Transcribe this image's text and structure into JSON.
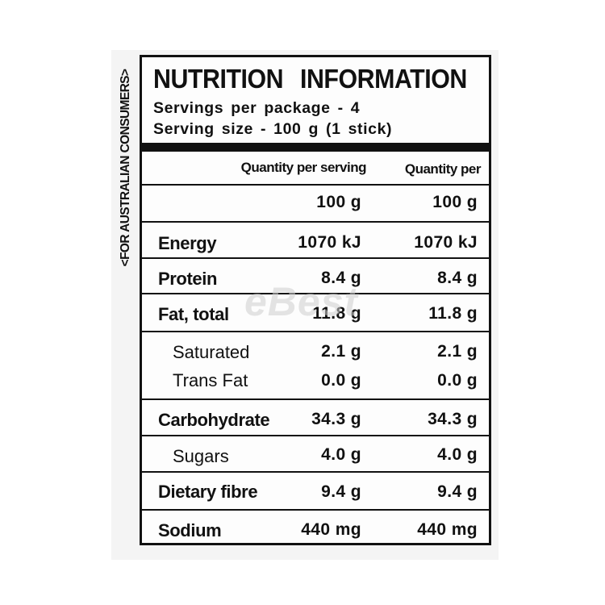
{
  "side_label": "<FOR AUSTRALIAN CONSUMERS>",
  "title": "NUTRITION  INFORMATION",
  "servings_per_package": "Servings per package - 4",
  "serving_size": "Serving size - 100 g (1 stick)",
  "columns": {
    "per_serving": "Quantity per serving",
    "per_100g": "Quantity per"
  },
  "base_row": {
    "per_serving": "100 g",
    "per_100g": "100 g"
  },
  "nutrients": {
    "energy": {
      "label": "Energy",
      "per_serving": "1070 kJ",
      "per_100g": "1070 kJ"
    },
    "protein": {
      "label": "Protein",
      "per_serving": "8.4 g",
      "per_100g": "8.4 g"
    },
    "fat_total": {
      "label": "Fat, total",
      "per_serving": "11.8 g",
      "per_100g": "11.8 g"
    },
    "saturated": {
      "label": "Saturated",
      "per_serving": "2.1 g",
      "per_100g": "2.1 g"
    },
    "trans_fat": {
      "label": "Trans Fat",
      "per_serving": "0.0 g",
      "per_100g": "0.0 g"
    },
    "carbohydrate": {
      "label": "Carbohydrate",
      "per_serving": "34.3 g",
      "per_100g": "34.3 g"
    },
    "sugars": {
      "label": "Sugars",
      "per_serving": "4.0 g",
      "per_100g": "4.0 g"
    },
    "dietary_fibre": {
      "label": "Dietary fibre",
      "per_serving": "9.4 g",
      "per_100g": "9.4 g"
    },
    "sodium": {
      "label": "Sodium",
      "per_serving": "440 mg",
      "per_100g": "440 mg"
    }
  },
  "watermark": "eBest"
}
